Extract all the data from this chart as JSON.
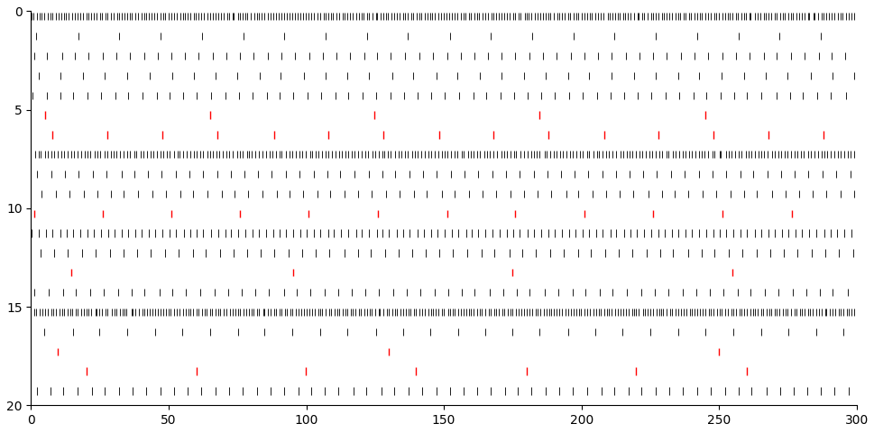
{
  "n_neurons": 20,
  "T": 300,
  "period": 5,
  "figsize": [
    9.7,
    4.8
  ],
  "dpi": 100,
  "spike_color_exc": "#1a1a1a",
  "spike_color_inh": "#ff0000",
  "bg_color": "#ffffff",
  "tick_fontsize": 10,
  "neuron_firing_periods": [
    1.0,
    15.0,
    5.0,
    8.0,
    5.0,
    60.0,
    20.0,
    1.2,
    5.0,
    5.0,
    25.0,
    2.5,
    5.0,
    80.0,
    5.0,
    1.0,
    10.0,
    120.0,
    40.0,
    5.0
  ],
  "neuron_phases": [
    0.0,
    2.0,
    1.0,
    3.0,
    0.5,
    5.0,
    8.0,
    0.2,
    2.5,
    4.0,
    1.0,
    0.3,
    3.5,
    15.0,
    1.5,
    0.1,
    5.0,
    10.0,
    20.0,
    2.0
  ],
  "inhibitory_neurons": [
    5,
    6,
    10,
    13,
    17,
    18
  ],
  "xlim": [
    0,
    300
  ],
  "ylim": [
    20,
    0
  ],
  "xticks": [
    0,
    50,
    100,
    150,
    200,
    250,
    300
  ],
  "yticks": [
    0,
    5,
    10,
    15,
    20
  ],
  "lw_exc": 0.7,
  "lw_inh": 1.0,
  "spike_height": 0.38,
  "spike_bottom": 0.08,
  "jitter_sigma": 0.15
}
